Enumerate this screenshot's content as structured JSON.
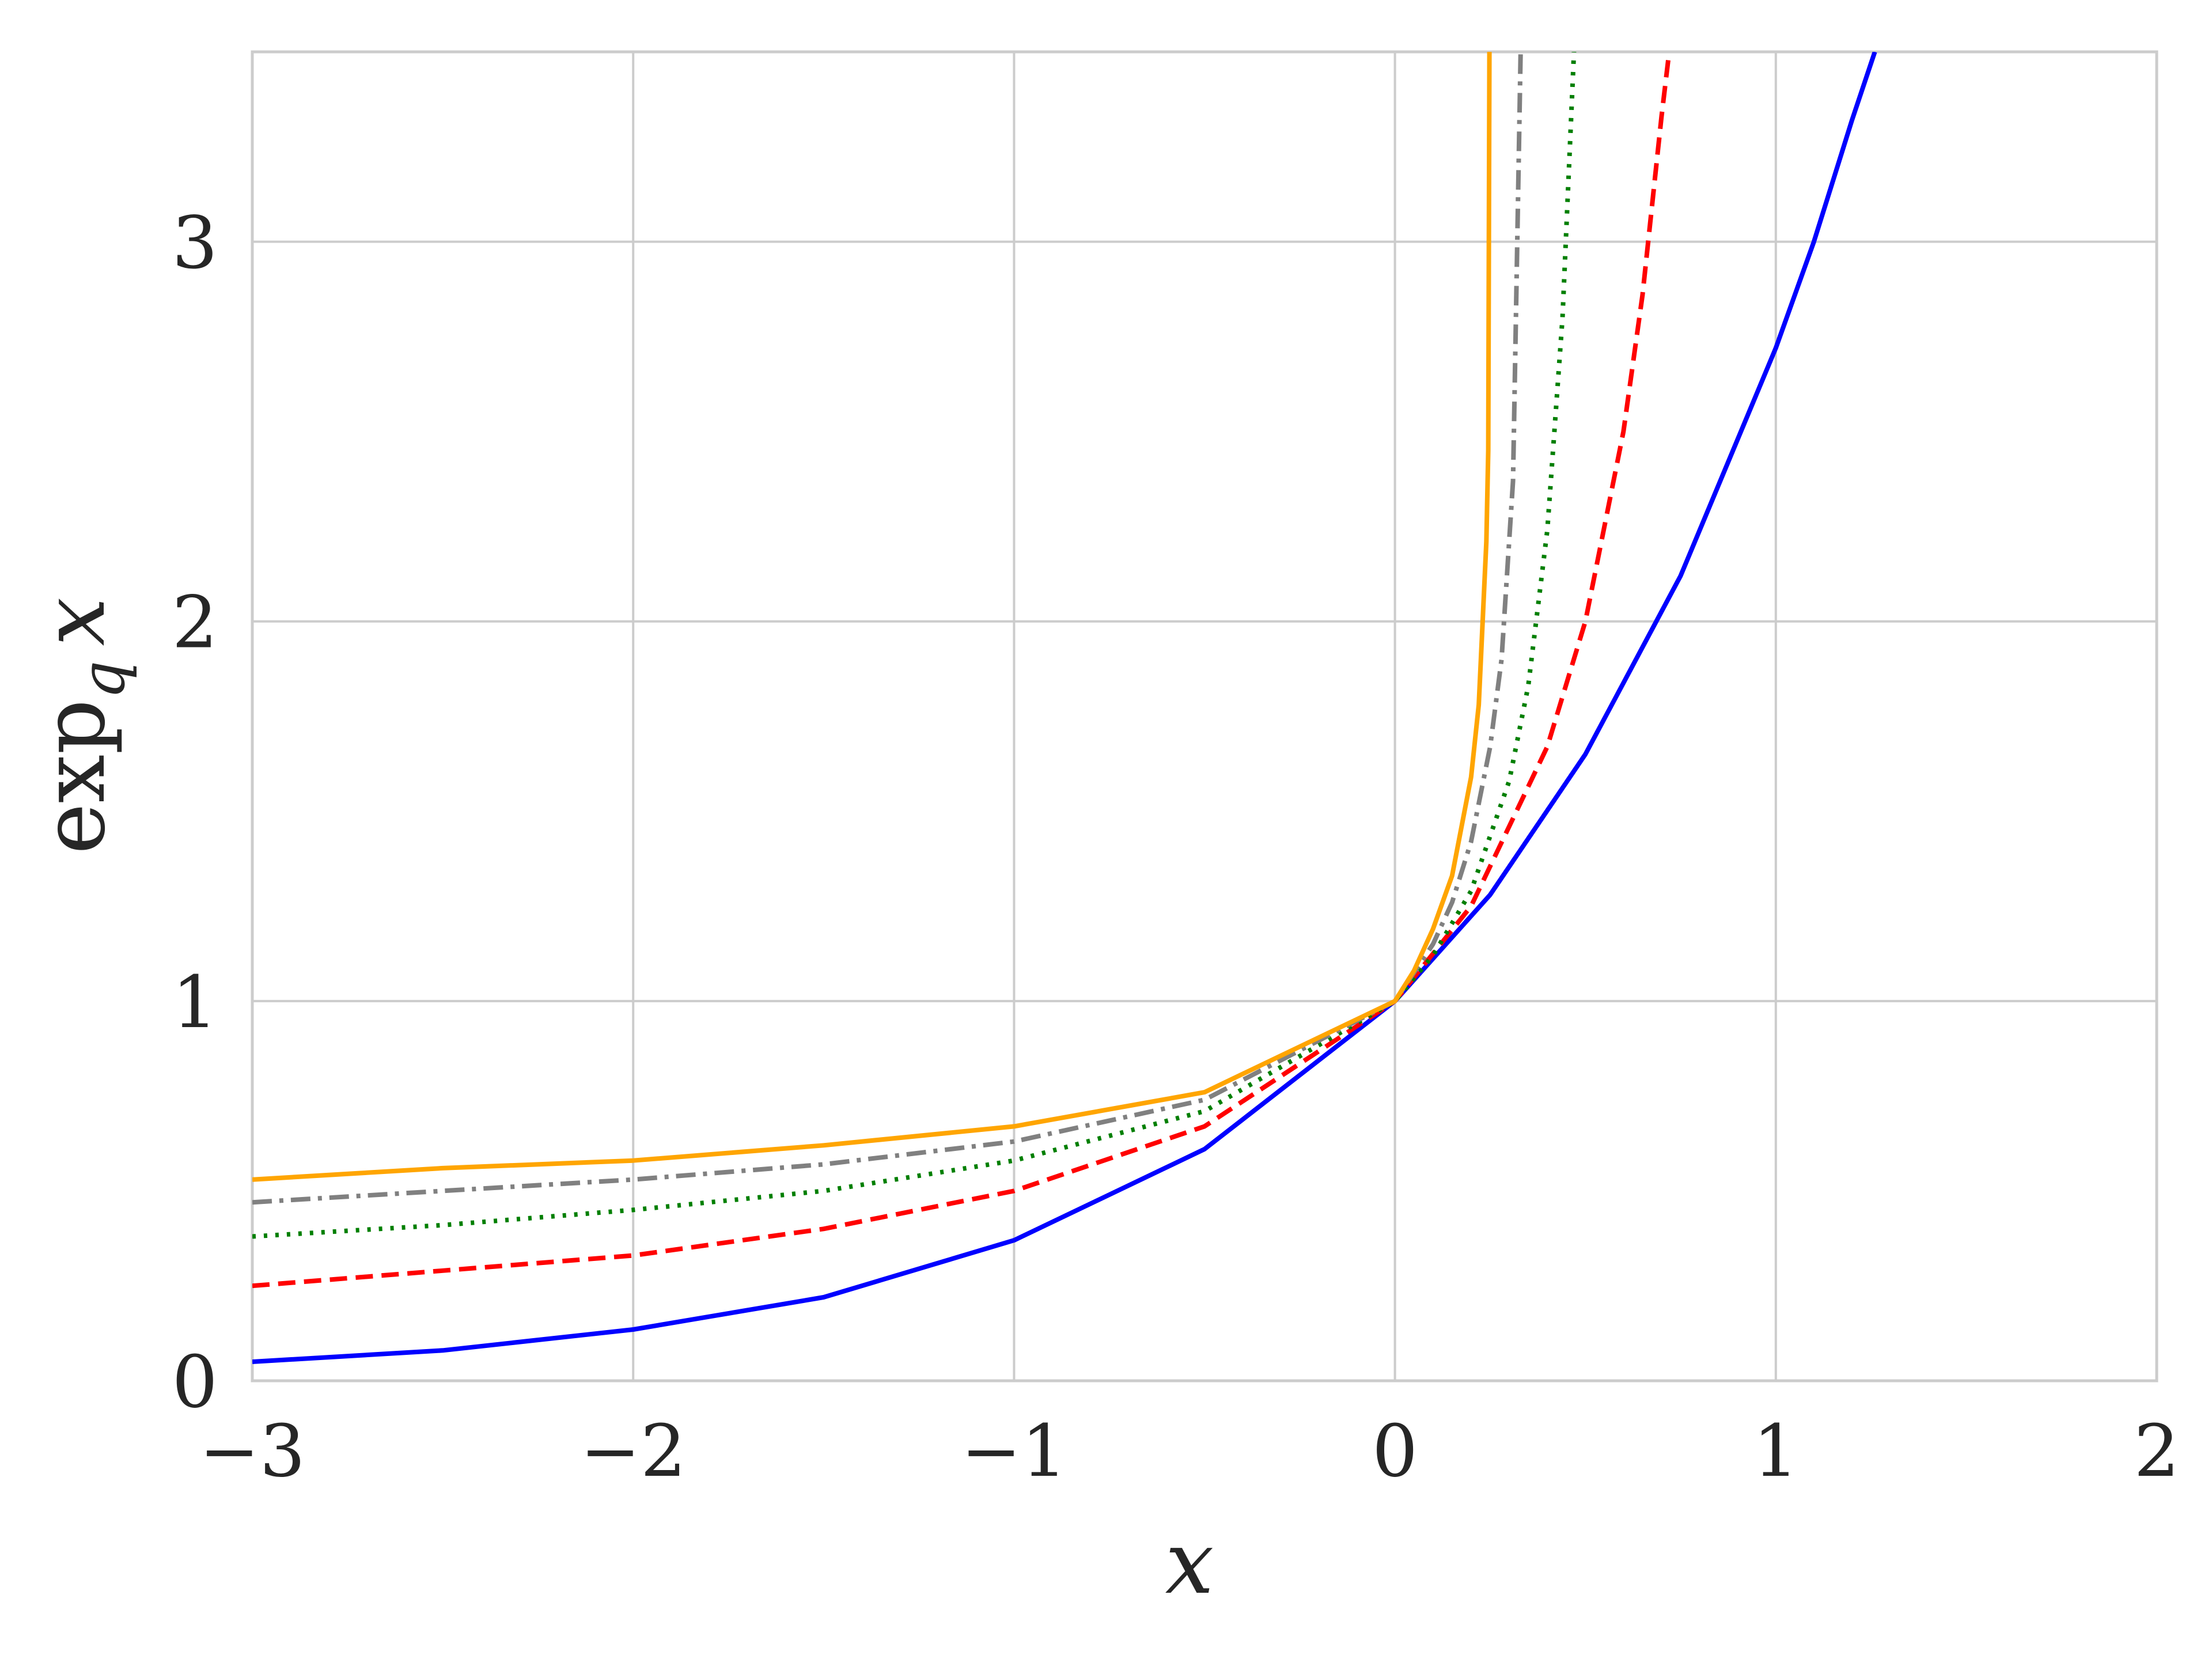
{
  "chart_data": {
    "type": "line",
    "xlabel": "x",
    "ylabel": {
      "main": "exp",
      "sub": "q",
      "var": "x"
    },
    "xlim": [
      -3,
      2
    ],
    "ylim": [
      0,
      3.5
    ],
    "x_ticks": [
      -3,
      -2,
      -1,
      0,
      1,
      2
    ],
    "x_tick_labels": [
      "−3",
      "−2",
      "−1",
      "0",
      "1",
      "2"
    ],
    "y_ticks": [
      0,
      1,
      2,
      3
    ],
    "y_tick_labels": [
      "0",
      "1",
      "2",
      "3"
    ],
    "grid": true,
    "series": [
      {
        "color": "#0000ff",
        "dash": "solid",
        "x": [
          -3.0,
          -2.5,
          -2.0,
          -1.5,
          -1.0,
          -0.5,
          0.0,
          0.25,
          0.5,
          0.75,
          1.0,
          1.1,
          1.2,
          1.26
        ],
        "y": [
          0.05,
          0.08,
          0.135,
          0.22,
          0.37,
          0.61,
          1.0,
          1.28,
          1.65,
          2.12,
          2.72,
          3.0,
          3.32,
          3.5
        ]
      },
      {
        "color": "#ff0000",
        "dash": "dashed",
        "x": [
          -3.0,
          -2.5,
          -2.0,
          -1.5,
          -1.0,
          -0.5,
          0.0,
          0.2,
          0.4,
          0.5,
          0.6,
          0.65,
          0.7,
          0.72
        ],
        "y": [
          0.25,
          0.29,
          0.33,
          0.4,
          0.5,
          0.67,
          1.0,
          1.25,
          1.67,
          2.0,
          2.5,
          2.86,
          3.33,
          3.5
        ]
      },
      {
        "color": "#007f00",
        "dash": "dotted",
        "x": [
          -3.0,
          -2.5,
          -2.0,
          -1.5,
          -1.0,
          -0.5,
          0.0,
          0.1,
          0.2,
          0.3,
          0.35,
          0.4,
          0.44,
          0.47
        ],
        "y": [
          0.38,
          0.41,
          0.45,
          0.5,
          0.58,
          0.71,
          1.0,
          1.12,
          1.29,
          1.58,
          1.83,
          2.24,
          2.8,
          3.5
        ]
      },
      {
        "color": "#808080",
        "dash": "dashdot",
        "x": [
          -3.0,
          -2.5,
          -2.0,
          -1.5,
          -1.0,
          -0.5,
          0.0,
          0.1,
          0.15,
          0.2,
          0.25,
          0.28,
          0.31,
          0.33
        ],
        "y": [
          0.47,
          0.5,
          0.53,
          0.57,
          0.63,
          0.74,
          1.0,
          1.15,
          1.26,
          1.42,
          1.67,
          1.9,
          2.37,
          3.5
        ]
      },
      {
        "color": "#ffa500",
        "dash": "solid",
        "x": [
          -3.0,
          -2.5,
          -2.0,
          -1.5,
          -1.0,
          -0.5,
          0.0,
          0.05,
          0.1,
          0.15,
          0.2,
          0.22,
          0.24,
          0.245,
          0.248
        ],
        "y": [
          0.53,
          0.56,
          0.58,
          0.62,
          0.67,
          0.76,
          1.0,
          1.08,
          1.19,
          1.33,
          1.59,
          1.78,
          2.21,
          2.45,
          3.5
        ]
      }
    ]
  }
}
